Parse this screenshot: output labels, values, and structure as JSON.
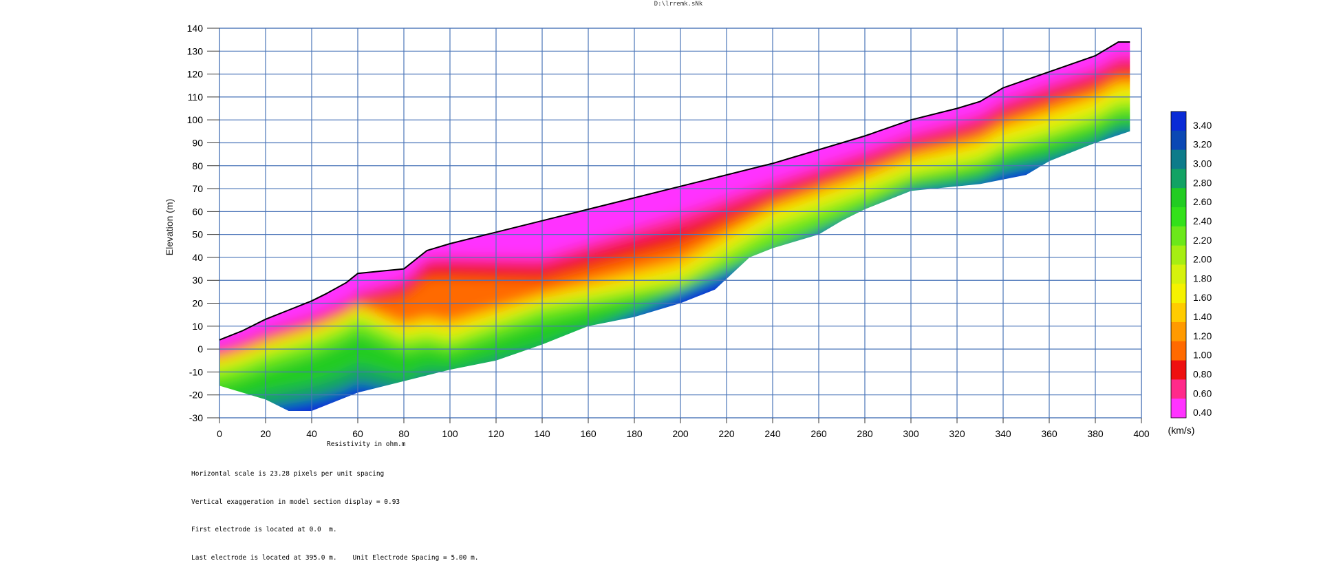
{
  "file_title": "D:\\lrremk.sNk",
  "chart_data": {
    "type": "heatmap",
    "title": "",
    "xlabel": "",
    "ylabel": "Elevation (m)",
    "xlim": [
      0,
      400
    ],
    "ylim": [
      -30,
      140
    ],
    "x_ticks": [
      0,
      20,
      40,
      60,
      80,
      100,
      120,
      140,
      160,
      180,
      200,
      220,
      240,
      260,
      280,
      300,
      320,
      340,
      360,
      380,
      400
    ],
    "y_ticks": [
      140,
      130,
      120,
      110,
      100,
      90,
      80,
      70,
      60,
      50,
      40,
      30,
      20,
      10,
      0,
      -10,
      -20,
      -30
    ],
    "grid": true,
    "surface_topography": [
      [
        0,
        4
      ],
      [
        10,
        8
      ],
      [
        20,
        13
      ],
      [
        30,
        17
      ],
      [
        40,
        21
      ],
      [
        46,
        24
      ],
      [
        55,
        29
      ],
      [
        60,
        33
      ],
      [
        70,
        34
      ],
      [
        80,
        35
      ],
      [
        90,
        43
      ],
      [
        100,
        46
      ],
      [
        120,
        51
      ],
      [
        140,
        56
      ],
      [
        160,
        61
      ],
      [
        180,
        66
      ],
      [
        200,
        71
      ],
      [
        220,
        76
      ],
      [
        240,
        81
      ],
      [
        260,
        87
      ],
      [
        280,
        93
      ],
      [
        300,
        100
      ],
      [
        320,
        105
      ],
      [
        330,
        108
      ],
      [
        340,
        114
      ],
      [
        360,
        121
      ],
      [
        380,
        128
      ],
      [
        390,
        134
      ],
      [
        395,
        134
      ]
    ],
    "section_bottom": [
      [
        395,
        95
      ],
      [
        380,
        90
      ],
      [
        360,
        82
      ],
      [
        350,
        76
      ],
      [
        330,
        72
      ],
      [
        300,
        69
      ],
      [
        280,
        61
      ],
      [
        270,
        56
      ],
      [
        260,
        50
      ],
      [
        240,
        44
      ],
      [
        230,
        40
      ],
      [
        215,
        26
      ],
      [
        200,
        20
      ],
      [
        180,
        14
      ],
      [
        160,
        10
      ],
      [
        140,
        2
      ],
      [
        120,
        -5
      ],
      [
        100,
        -9
      ],
      [
        80,
        -14
      ],
      [
        60,
        -19
      ],
      [
        40,
        -27
      ],
      [
        30,
        -27
      ],
      [
        20,
        -22
      ],
      [
        10,
        -19
      ],
      [
        0,
        -16
      ]
    ],
    "colorbar": {
      "units": "(km/s)",
      "labels": [
        "3.40",
        "3.20",
        "3.00",
        "2.80",
        "2.60",
        "2.40",
        "2.20",
        "2.00",
        "1.80",
        "1.60",
        "1.40",
        "1.20",
        "1.00",
        "0.80",
        "0.60",
        "0.40"
      ],
      "colors": [
        "#0a2bd6",
        "#0b48b4",
        "#0d7b8a",
        "#12a264",
        "#22cc22",
        "#33e11a",
        "#6ce81a",
        "#a6ee12",
        "#d6f20c",
        "#f5f200",
        "#ffcc00",
        "#ff9a00",
        "#ff6a00",
        "#ee1010",
        "#ff2a8a",
        "#ff33ff"
      ]
    }
  },
  "footer": {
    "resistivity_label": "Resistivity in ohm.m",
    "lines": [
      "Horizontal scale is 23.28 pixels per unit spacing",
      "Vertical exaggeration in model section display = 0.93",
      "First electrode is located at 0.0  m.",
      "Last electrode is located at 395.0 m.    Unit Electrode Spacing = 5.00 m."
    ]
  }
}
